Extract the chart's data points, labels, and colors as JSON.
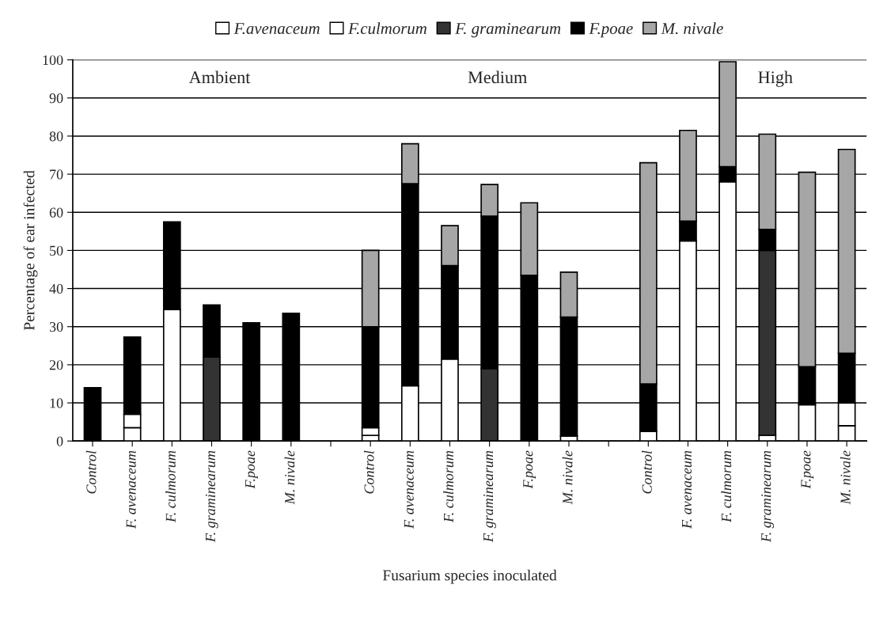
{
  "chart_data": {
    "type": "bar",
    "stacked": true,
    "categories": [
      "Control",
      "F. avenaceum",
      "F. culmorum",
      "F. graminearum",
      "F.poae",
      "M. nivale",
      null,
      "Control",
      "F. avenaceum",
      "F. culmorum",
      "F. graminearum",
      "F.poae",
      "M. nivale",
      null,
      "Control",
      "F. avenaceum",
      "F. culmorum",
      "F. graminearum",
      "F.poae",
      "M. nivale"
    ],
    "series": [
      {
        "name": "F.avenaceum",
        "color": "#ffffff",
        "values": [
          null,
          3.5,
          null,
          null,
          null,
          null,
          null,
          1.5,
          14.5,
          null,
          null,
          null,
          1.3,
          null,
          2.5,
          52.5,
          null,
          1.5,
          9.5,
          4
        ]
      },
      {
        "name": "F.culmorum",
        "color": "#ffffff",
        "values": [
          null,
          3.5,
          34.5,
          null,
          null,
          null,
          null,
          2,
          null,
          21.5,
          null,
          null,
          null,
          null,
          null,
          null,
          68,
          null,
          null,
          6
        ]
      },
      {
        "name": "F. graminearum",
        "color": "#333333",
        "values": [
          null,
          null,
          null,
          22,
          null,
          null,
          null,
          null,
          null,
          null,
          19,
          null,
          null,
          null,
          null,
          null,
          null,
          48.5,
          null,
          null
        ]
      },
      {
        "name": "F.poae",
        "color": "#000000",
        "values": [
          14,
          20.3,
          23,
          13.7,
          31,
          33.5,
          null,
          26.5,
          53,
          24.5,
          40,
          43.5,
          31.2,
          null,
          12.5,
          5.2,
          4,
          5.5,
          10,
          13
        ]
      },
      {
        "name": "M. nivale",
        "color": "#a6a6a6",
        "values": [
          null,
          null,
          null,
          null,
          null,
          null,
          null,
          20,
          10.5,
          10.5,
          8.3,
          19,
          11.8,
          null,
          58,
          23.8,
          27.5,
          25,
          51,
          53.5
        ]
      }
    ],
    "ylim": [
      0,
      100
    ],
    "yticks": [
      0,
      10,
      20,
      30,
      40,
      50,
      60,
      70,
      80,
      90,
      100
    ],
    "grid": "y",
    "legend": "top",
    "xlabel": "Fusarium species inoculated",
    "ylabel": "Percentage of ear infected",
    "annotations": [
      "Ambient",
      "Medium",
      "High"
    ]
  }
}
